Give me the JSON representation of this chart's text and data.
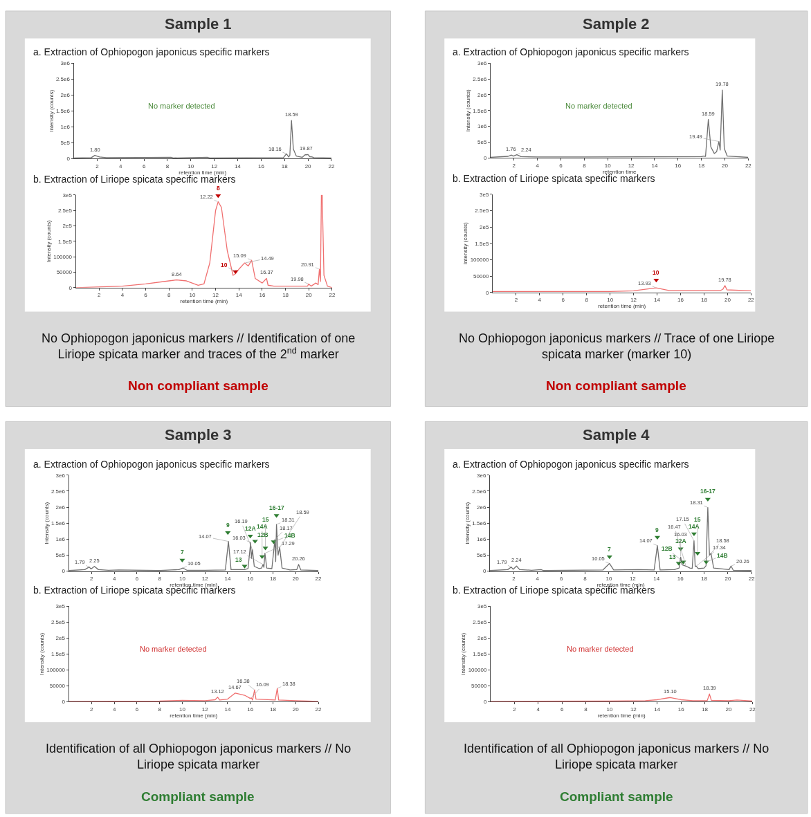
{
  "chart_data": [
    {
      "type": "line",
      "title": "Sample 1",
      "subtitle": "a. Extraction of Ophiopogon japonicus specific markers",
      "xlabel": "retention time (min)",
      "ylabel": "Intensity (counts)",
      "xlim": [
        0,
        22
      ],
      "xticks": [
        2,
        4,
        6,
        8,
        10,
        12,
        14,
        16,
        18,
        20,
        22
      ],
      "ylim": [
        0,
        3000000
      ],
      "yticks": [
        0,
        {
          "value": 500000,
          "label": "5e5"
        },
        {
          "value": 1000000,
          "label": "1e6"
        },
        {
          "value": 1500000,
          "label": "1.5e6"
        },
        {
          "value": 2000000,
          "label": "2e6"
        },
        {
          "value": 2500000,
          "label": "2.5e6"
        },
        {
          "value": 3000000,
          "label": "3e6"
        }
      ],
      "series": [
        {
          "color": "#707070",
          "x": [
            0,
            1.5,
            1.8,
            2.2,
            2.8,
            8.3,
            8.5,
            11.4,
            11.6,
            17.9,
            18.16,
            18.35,
            18.45,
            18.59,
            18.75,
            19,
            19.5,
            19.75,
            19.87,
            20,
            20.15,
            20.35,
            20.5,
            22
          ],
          "values": [
            20000,
            30000,
            100000,
            50000,
            30000,
            40000,
            20000,
            40000,
            20000,
            30000,
            150000,
            50000,
            100000,
            1200000,
            300000,
            80000,
            40000,
            120000,
            120000,
            130000,
            60000,
            50000,
            30000,
            20000
          ]
        }
      ],
      "annotations": [
        "No marker detected",
        {
          "text": "1.80",
          "x": 1.8,
          "y": 100000
        },
        {
          "text": "18.16",
          "x": 18.16,
          "y": 150000
        },
        {
          "text": "18.59",
          "x": 18.59,
          "y": 1200000
        },
        {
          "text": "19.87",
          "x": 19.87,
          "y": 130000
        }
      ]
    },
    {
      "type": "line",
      "title": "b. Extraction of Liriope spicata specific markers",
      "xlabel": "retention time (min)",
      "ylabel": "Intensity (counts)",
      "xlim": [
        0,
        22
      ],
      "xticks": [
        2,
        4,
        6,
        8,
        10,
        12,
        14,
        16,
        18,
        20,
        22
      ],
      "ylim": [
        0,
        300000
      ],
      "yticks": [
        0,
        50000,
        100000,
        {
          "value": 150000,
          "label": "1.5e5"
        },
        {
          "value": 200000,
          "label": "2e5"
        },
        {
          "value": 250000,
          "label": "2.5e5"
        },
        {
          "value": 300000,
          "label": "3e5"
        }
      ],
      "series": [
        {
          "color": "#f07070",
          "x": [
            0,
            4,
            6,
            8,
            8.64,
            9.5,
            10.5,
            11,
            11.5,
            12,
            12.22,
            12.5,
            13,
            13.5,
            13.7,
            14,
            14.49,
            14.8,
            15.09,
            15.4,
            16,
            16.37,
            16.5,
            17,
            19.9,
            19.98,
            20.2,
            20.6,
            20.8,
            20.91,
            21.0,
            21.08,
            21.15,
            21.3,
            21.6,
            22
          ],
          "values": [
            0,
            5000,
            12000,
            22000,
            25000,
            22000,
            8000,
            12000,
            80000,
            250000,
            278000,
            260000,
            120000,
            40000,
            45000,
            60000,
            80000,
            70000,
            89000,
            30000,
            15000,
            30000,
            8000,
            5000,
            5000,
            12000,
            5000,
            15000,
            10000,
            60000,
            20000,
            300000,
            300000,
            40000,
            5000,
            0
          ]
        },
        {
          "type": "scatter",
          "marker": "triangle",
          "color": "#c00000",
          "x": [
            12.22,
            13.7
          ],
          "values": [
            298000,
            52000
          ]
        }
      ],
      "annotations": [
        {
          "text": "8",
          "x": 12.22,
          "y": 298000
        },
        {
          "text": "10",
          "x": 13.7,
          "y": 52000
        },
        {
          "text": "8.64",
          "x": 8.64,
          "y": 25000
        },
        {
          "text": "12.22",
          "x": 12.22,
          "y": 278000
        },
        {
          "text": "14.49",
          "x": 14.49,
          "y": 80000
        },
        {
          "text": "15.09",
          "x": 15.09,
          "y": 89000
        },
        {
          "text": "16.37",
          "x": 16.37,
          "y": 30000
        },
        {
          "text": "19.98",
          "x": 19.98,
          "y": 12000
        },
        {
          "text": "20.91",
          "x": 20.91,
          "y": 60000
        },
        "No Ophiopogon japonicus markers // Identification of one Liriope spicata marker and traces of the 2$^{nd}$ marker",
        "Non compliant sample"
      ]
    },
    {
      "type": "line",
      "title": "Sample 2",
      "subtitle": "a. Extraction of Ophiopogon japonicus specific markers",
      "xlabel": "retention time",
      "ylabel": "Intensity (counts)",
      "xlim": [
        0,
        22
      ],
      "xticks": [
        2,
        4,
        6,
        8,
        10,
        12,
        14,
        16,
        18,
        20,
        22
      ],
      "ylim": [
        0,
        3000000
      ],
      "yticks": [
        0,
        {
          "value": 500000,
          "label": "5e5"
        },
        {
          "value": 1000000,
          "label": "1e6"
        },
        {
          "value": 1500000,
          "label": "1.5e6"
        },
        {
          "value": 2000000,
          "label": "2e6"
        },
        {
          "value": 2500000,
          "label": "2.5e6"
        },
        {
          "value": 3000000,
          "label": "3e6"
        }
      ],
      "series": [
        {
          "color": "#707070",
          "x": [
            0,
            1.5,
            1.76,
            1.95,
            2.24,
            2.6,
            4,
            8,
            18,
            18.2,
            18.35,
            18.59,
            18.8,
            19.1,
            19.3,
            19.49,
            19.6,
            19.78,
            19.95,
            20.2,
            22
          ],
          "values": [
            20000,
            50000,
            90000,
            60000,
            100000,
            40000,
            30000,
            30000,
            40000,
            60000,
            50000,
            1220000,
            350000,
            140000,
            200000,
            520000,
            250000,
            2150000,
            300000,
            60000,
            20000
          ]
        }
      ],
      "annotations": [
        "No marker detected",
        {
          "text": "1.76",
          "x": 1.76,
          "y": 90000
        },
        {
          "text": "2.24",
          "x": 2.24,
          "y": 100000
        },
        {
          "text": "18.59",
          "x": 18.59,
          "y": 1220000
        },
        {
          "text": "19.49",
          "x": 19.49,
          "y": 520000
        },
        {
          "text": "19.78",
          "x": 19.78,
          "y": 2150000
        }
      ]
    },
    {
      "type": "line",
      "title": "b. Extraction of Liriope spicata specific markers",
      "xlabel": "retention time (min)",
      "ylabel": "Intensity (counts)",
      "xlim": [
        0,
        22
      ],
      "xticks": [
        2,
        4,
        6,
        8,
        10,
        12,
        14,
        16,
        18,
        20,
        22
      ],
      "ylim": [
        0,
        300000
      ],
      "yticks": [
        0,
        50000,
        100000,
        {
          "value": 150000,
          "label": "1.5e5"
        },
        {
          "value": 200000,
          "label": "2e5"
        },
        {
          "value": 250000,
          "label": "2.5e5"
        },
        {
          "value": 300000,
          "label": "3e5"
        }
      ],
      "series": [
        {
          "color": "#f07070",
          "x": [
            0,
            10,
            12,
            13,
            13.93,
            14.5,
            15,
            19.4,
            19.6,
            19.78,
            19.95,
            22
          ],
          "values": [
            3000,
            3000,
            5000,
            10000,
            14000,
            10000,
            6000,
            6000,
            10000,
            21000,
            8000,
            5000
          ]
        },
        {
          "type": "scatter",
          "marker": "triangle",
          "color": "#c00000",
          "x": [
            13.93
          ],
          "values": [
            38000
          ]
        }
      ],
      "annotations": [
        {
          "text": "10",
          "x": 13.93,
          "y": 38000
        },
        {
          "text": "13.93",
          "x": 13.93,
          "y": 14000
        },
        {
          "text": "19.78",
          "x": 19.78,
          "y": 21000
        },
        "No Ophiopogon japonicus markers // Trace of one Liriope spicata marker (marker 10)",
        "Non compliant sample"
      ]
    },
    {
      "type": "line",
      "title": "Sample 3",
      "subtitle": "a. Extraction of Ophiopogon japonicus specific markers",
      "xlabel": "retention time (min)",
      "ylabel": "Intensity (counts)",
      "xlim": [
        0,
        22
      ],
      "xticks": [
        2,
        4,
        6,
        8,
        10,
        12,
        14,
        16,
        18,
        20,
        22
      ],
      "ylim": [
        0,
        3000000
      ],
      "yticks": [
        0,
        {
          "value": 500000,
          "label": "5e5"
        },
        {
          "value": 1000000,
          "label": "1e6"
        },
        {
          "value": 1500000,
          "label": "1.5e6"
        },
        {
          "value": 2000000,
          "label": "2e6"
        },
        {
          "value": 2500000,
          "label": "2.5e6"
        },
        {
          "value": 3000000,
          "label": "3e6"
        }
      ],
      "series": [
        {
          "color": "#707070",
          "x": [
            0,
            1.4,
            1.79,
            1.95,
            2.25,
            2.6,
            3.5,
            4.4,
            8,
            9,
            9.7,
            10.05,
            10.4,
            12,
            13.8,
            14.07,
            14.3,
            15.5,
            15.8,
            16.03,
            16.1,
            16.19,
            16.35,
            16.8,
            17.0,
            17.12,
            17.2,
            17.29,
            17.45,
            17.9,
            18.17,
            18.24,
            18.31,
            18.45,
            18.59,
            18.8,
            19.5,
            20.1,
            20.26,
            20.45,
            22
          ],
          "values": [
            20000,
            50000,
            130000,
            70000,
            150000,
            50000,
            30000,
            40000,
            20000,
            40000,
            50000,
            100000,
            30000,
            30000,
            40000,
            930000,
            50000,
            50000,
            80000,
            900000,
            400000,
            670000,
            150000,
            80000,
            100000,
            210000,
            120000,
            560000,
            100000,
            80000,
            990000,
            300000,
            1460000,
            500000,
            740000,
            100000,
            40000,
            50000,
            210000,
            40000,
            20000
          ]
        },
        {
          "type": "scatter",
          "marker": "triangle",
          "color": "#2e7d32",
          "x": [
            10.0,
            14.02,
            15.5,
            16.0,
            16.42,
            17.04,
            17.33,
            18.06,
            18.31
          ],
          "values": [
            350000,
            1210000,
            160000,
            1100000,
            940000,
            460000,
            730000,
            920000,
            1740000
          ]
        }
      ],
      "annotations": [
        {
          "text": "7",
          "x": 10.0,
          "y": 350000
        },
        {
          "text": "9",
          "x": 14.02,
          "y": 1210000
        },
        {
          "text": "13",
          "x": 15.5,
          "y": 160000
        },
        {
          "text": "12A",
          "x": 16.0,
          "y": 1100000
        },
        {
          "text": "12B",
          "x": 16.42,
          "y": 940000
        },
        {
          "text": "14A",
          "x": 17.04,
          "y": 460000
        },
        {
          "text": "15",
          "x": 17.33,
          "y": 730000
        },
        {
          "text": "14B",
          "x": 18.06,
          "y": 920000
        },
        {
          "text": "16-17",
          "x": 18.31,
          "y": 1740000
        },
        {
          "text": "1.79",
          "x": 1.79,
          "y": 130000
        },
        {
          "text": "2.25",
          "x": 2.25,
          "y": 150000
        },
        {
          "text": "10.05",
          "x": 10.05,
          "y": 100000
        },
        {
          "text": "14.07",
          "x": 14.07,
          "y": 930000
        },
        {
          "text": "16.03",
          "x": 16.03,
          "y": 900000
        },
        {
          "text": "16.19",
          "x": 16.19,
          "y": 670000
        },
        {
          "text": "17.12",
          "x": 17.12,
          "y": 210000
        },
        {
          "text": "17.29",
          "x": 17.29,
          "y": 560000
        },
        {
          "text": "18.17",
          "x": 18.17,
          "y": 990000
        },
        {
          "text": "18.31",
          "x": 18.31,
          "y": 1460000
        },
        {
          "text": "18.59",
          "x": 18.59,
          "y": 740000
        },
        {
          "text": "20.26",
          "x": 20.26,
          "y": 210000
        }
      ]
    },
    {
      "type": "line",
      "title": "b. Extraction of Liriope spicata specific markers",
      "xlabel": "retention time (min)",
      "ylabel": "Intensity (counts)",
      "xlim": [
        0,
        22
      ],
      "xticks": [
        2,
        4,
        6,
        8,
        10,
        12,
        14,
        16,
        18,
        20,
        22
      ],
      "ylim": [
        0,
        300000
      ],
      "yticks": [
        0,
        50000,
        100000,
        {
          "value": 150000,
          "label": "1.5e5"
        },
        {
          "value": 200000,
          "label": "2e5"
        },
        {
          "value": 250000,
          "label": "2.5e5"
        },
        {
          "value": 300000,
          "label": "3e5"
        }
      ],
      "series": [
        {
          "color": "#f07070",
          "x": [
            0,
            8,
            10,
            12,
            12.9,
            13.12,
            13.3,
            14,
            14.67,
            15.5,
            16,
            16.09,
            16.2,
            16.38,
            16.5,
            18.2,
            18.38,
            18.5,
            20,
            22
          ],
          "values": [
            1000,
            2000,
            4000,
            3000,
            6000,
            14000,
            5000,
            8000,
            27000,
            20000,
            10000,
            12000,
            5000,
            37000,
            8000,
            5000,
            42000,
            5000,
            3000,
            1000
          ]
        }
      ],
      "annotations": [
        "No marker detected",
        {
          "text": "13.12",
          "x": 13.12,
          "y": 14000
        },
        {
          "text": "14.67",
          "x": 14.67,
          "y": 27000
        },
        {
          "text": "16.09",
          "x": 16.09,
          "y": 12000
        },
        {
          "text": "16.38",
          "x": 16.38,
          "y": 37000
        },
        {
          "text": "18.38",
          "x": 18.38,
          "y": 42000
        },
        "Identification of all Ophiopogon japonicus markers // No Liriope spicata marker",
        "Compliant sample"
      ]
    },
    {
      "type": "line",
      "title": "Sample 4",
      "subtitle": "a. Extraction of Ophiopogon japonicus specific markers",
      "xlabel": "retention time (min)",
      "ylabel": "Intensity (counts)",
      "xlim": [
        0,
        22
      ],
      "xticks": [
        2,
        4,
        6,
        8,
        10,
        12,
        14,
        16,
        18,
        20,
        22
      ],
      "ylim": [
        0,
        3000000
      ],
      "yticks": [
        0,
        {
          "value": 500000,
          "label": "5e5"
        },
        {
          "value": 1000000,
          "label": "1e6"
        },
        {
          "value": 1500000,
          "label": "1.5e6"
        },
        {
          "value": 2000000,
          "label": "2e6"
        },
        {
          "value": 2500000,
          "label": "2.5e6"
        },
        {
          "value": 3000000,
          "label": "3e6"
        }
      ],
      "series": [
        {
          "color": "#707070",
          "x": [
            0,
            1.5,
            1.79,
            1.95,
            2.24,
            2.5,
            3.5,
            4.3,
            4.5,
            9.5,
            10.05,
            10.4,
            12.5,
            13.8,
            14.07,
            14.3,
            15.5,
            15.9,
            16.03,
            16.15,
            16.47,
            16.8,
            17.0,
            17.15,
            17.25,
            17.34,
            17.5,
            18.0,
            18.16,
            18.31,
            18.45,
            18.58,
            18.8,
            20.1,
            20.26,
            20.45,
            22
          ],
          "values": [
            20000,
            50000,
            130000,
            60000,
            160000,
            50000,
            30000,
            50000,
            20000,
            40000,
            240000,
            40000,
            50000,
            40000,
            800000,
            40000,
            50000,
            100000,
            440000,
            200000,
            160000,
            100000,
            90000,
            950000,
            150000,
            160000,
            80000,
            100000,
            170000,
            1990000,
            500000,
            560000,
            100000,
            50000,
            160000,
            30000,
            20000
          ]
        },
        {
          "type": "scatter",
          "marker": "triangle",
          "color": "#2e7d32",
          "x": [
            10.05,
            14.07,
            15.86,
            16.03,
            16.25,
            17.15,
            17.45,
            18.18,
            18.31
          ],
          "values": [
            450000,
            1060000,
            250000,
            700000,
            290000,
            1170000,
            560000,
            290000,
            2250000
          ]
        }
      ],
      "annotations": [
        {
          "text": "7",
          "x": 10.05,
          "y": 450000
        },
        {
          "text": "9",
          "x": 14.07,
          "y": 1060000
        },
        {
          "text": "13",
          "x": 15.86,
          "y": 250000
        },
        {
          "text": "12A",
          "x": 16.03,
          "y": 700000
        },
        {
          "text": "12B",
          "x": 16.25,
          "y": 290000
        },
        {
          "text": "14A",
          "x": 17.15,
          "y": 1170000
        },
        {
          "text": "15",
          "x": 17.45,
          "y": 560000
        },
        {
          "text": "14B",
          "x": 18.18,
          "y": 290000
        },
        {
          "text": "16-17",
          "x": 18.31,
          "y": 2250000
        },
        {
          "text": "1.79",
          "x": 1.79,
          "y": 130000
        },
        {
          "text": "2.24",
          "x": 2.24,
          "y": 160000
        },
        {
          "text": "10.05",
          "x": 10.05,
          "y": 240000
        },
        {
          "text": "14.07",
          "x": 14.07,
          "y": 800000
        },
        {
          "text": "16.03",
          "x": 16.03,
          "y": 440000
        },
        {
          "text": "16.47",
          "x": 16.47,
          "y": 160000
        },
        {
          "text": "17.15",
          "x": 17.15,
          "y": 950000
        },
        {
          "text": "17.34",
          "x": 17.34,
          "y": 160000
        },
        {
          "text": "18.31",
          "x": 18.31,
          "y": 1990000
        },
        {
          "text": "18.58",
          "x": 18.58,
          "y": 560000
        },
        {
          "text": "20.26",
          "x": 20.26,
          "y": 160000
        }
      ]
    },
    {
      "type": "line",
      "title": "b. Extraction of Liriope spicata specific markers",
      "xlabel": "retention time (min)",
      "ylabel": "Intensity (counts)",
      "xlim": [
        0,
        22
      ],
      "xticks": [
        2,
        4,
        6,
        8,
        10,
        12,
        14,
        16,
        18,
        20,
        22
      ],
      "ylim": [
        0,
        300000
      ],
      "yticks": [
        0,
        50000,
        100000,
        {
          "value": 150000,
          "label": "1.5e5"
        },
        {
          "value": 200000,
          "label": "2e5"
        },
        {
          "value": 250000,
          "label": "2.5e5"
        },
        {
          "value": 300000,
          "label": "3e5"
        }
      ],
      "series": [
        {
          "color": "#f07070",
          "x": [
            0,
            10,
            13,
            14,
            15.1,
            16,
            17,
            18.2,
            18.39,
            18.55,
            20,
            20.7,
            22
          ],
          "values": [
            1000,
            2000,
            3000,
            6000,
            13000,
            6000,
            3000,
            3000,
            24000,
            4000,
            3000,
            5000,
            2000
          ]
        }
      ],
      "annotations": [
        "No marker detected",
        {
          "text": "15.10",
          "x": 15.1,
          "y": 13000
        },
        {
          "text": "18.39",
          "x": 18.39,
          "y": 24000
        },
        "Identification of all Ophiopogon japonicus markers // No Liriope spicata marker",
        "Compliant sample"
      ]
    }
  ]
}
